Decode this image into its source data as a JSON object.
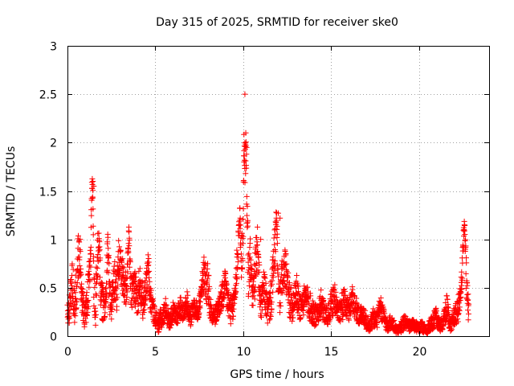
{
  "chart_data": {
    "type": "scatter",
    "title": "Day 315 of 2025, SRMTID for receiver ske0",
    "xlabel": "GPS time / hours",
    "ylabel": "SRMTID / TECUs",
    "xlim": [
      0,
      24
    ],
    "ylim": [
      0,
      3
    ],
    "xticks": [
      0,
      5,
      10,
      15,
      20
    ],
    "xtick_labels": [
      "0",
      "5",
      "10",
      "15",
      "20"
    ],
    "yticks": [
      0,
      0.5,
      1,
      1.5,
      2,
      2.5,
      3
    ],
    "ytick_labels": [
      "0",
      "0.5",
      "1",
      "1.5",
      "2",
      "2.5",
      "3"
    ],
    "grid": true,
    "marker": "+",
    "color": "#ff0000",
    "series": [
      {
        "name": "SRMTID",
        "x": [
          0.0,
          0.1,
          0.2,
          0.3,
          0.4,
          0.5,
          0.6,
          0.7,
          0.8,
          0.9,
          1.0,
          1.1,
          1.2,
          1.3,
          1.4,
          1.45,
          1.5,
          1.6,
          1.7,
          1.8,
          1.9,
          2.0,
          2.1,
          2.2,
          2.3,
          2.4,
          2.5,
          2.6,
          2.7,
          2.8,
          2.9,
          3.0,
          3.1,
          3.2,
          3.3,
          3.4,
          3.5,
          3.6,
          3.7,
          3.8,
          3.9,
          4.0,
          4.1,
          4.2,
          4.3,
          4.4,
          4.5,
          4.6,
          4.7,
          4.8,
          4.9,
          5.0,
          5.1,
          5.2,
          5.3,
          5.4,
          5.5,
          5.6,
          5.7,
          5.8,
          5.9,
          6.0,
          6.2,
          6.4,
          6.6,
          6.8,
          7.0,
          7.2,
          7.4,
          7.6,
          7.8,
          7.9,
          8.0,
          8.1,
          8.2,
          8.4,
          8.6,
          8.8,
          9.0,
          9.2,
          9.4,
          9.5,
          9.6,
          9.7,
          9.8,
          9.9,
          10.0,
          10.05,
          10.1,
          10.15,
          10.2,
          10.3,
          10.4,
          10.5,
          10.6,
          10.7,
          10.8,
          10.9,
          11.0,
          11.2,
          11.4,
          11.6,
          11.8,
          11.9,
          12.0,
          12.1,
          12.2,
          12.4,
          12.6,
          12.8,
          13.0,
          13.2,
          13.4,
          13.6,
          13.8,
          14.0,
          14.2,
          14.4,
          14.6,
          14.8,
          15.0,
          15.2,
          15.4,
          15.6,
          15.8,
          16.0,
          16.2,
          16.4,
          16.6,
          16.8,
          17.0,
          17.2,
          17.4,
          17.6,
          17.8,
          18.0,
          18.2,
          18.4,
          18.6,
          18.8,
          19.0,
          19.2,
          19.4,
          19.6,
          19.8,
          20.0,
          20.2,
          20.4,
          20.6,
          20.8,
          21.0,
          21.2,
          21.4,
          21.6,
          21.8,
          22.0,
          22.2,
          22.4,
          22.5,
          22.6,
          22.7,
          22.8
        ],
        "y": [
          0.3,
          0.25,
          0.45,
          0.6,
          0.35,
          0.5,
          0.8,
          0.9,
          0.4,
          0.3,
          0.2,
          0.35,
          0.5,
          0.7,
          1.6,
          1.45,
          0.5,
          0.3,
          0.8,
          1.05,
          0.4,
          0.35,
          0.3,
          0.5,
          0.9,
          0.4,
          0.35,
          0.5,
          0.6,
          0.45,
          0.8,
          0.7,
          0.65,
          0.55,
          0.5,
          0.6,
          1.05,
          0.5,
          0.4,
          0.55,
          0.45,
          0.35,
          0.6,
          0.5,
          0.3,
          0.45,
          0.55,
          0.7,
          0.4,
          0.35,
          0.25,
          0.2,
          0.15,
          0.1,
          0.2,
          0.15,
          0.25,
          0.3,
          0.2,
          0.15,
          0.2,
          0.25,
          0.2,
          0.3,
          0.25,
          0.35,
          0.2,
          0.3,
          0.25,
          0.4,
          0.7,
          0.5,
          0.6,
          0.3,
          0.25,
          0.2,
          0.3,
          0.4,
          0.5,
          0.3,
          0.25,
          0.4,
          0.6,
          0.9,
          1.25,
          0.8,
          1.0,
          2.05,
          1.75,
          1.9,
          1.6,
          0.6,
          0.8,
          0.5,
          0.45,
          0.7,
          1.0,
          0.6,
          0.3,
          0.5,
          0.25,
          0.4,
          0.9,
          1.25,
          0.5,
          0.35,
          0.6,
          0.7,
          0.4,
          0.3,
          0.5,
          0.3,
          0.35,
          0.4,
          0.3,
          0.25,
          0.2,
          0.35,
          0.25,
          0.2,
          0.3,
          0.4,
          0.25,
          0.3,
          0.35,
          0.25,
          0.4,
          0.3,
          0.2,
          0.25,
          0.15,
          0.1,
          0.2,
          0.15,
          0.3,
          0.2,
          0.1,
          0.15,
          0.1,
          0.05,
          0.1,
          0.15,
          0.1,
          0.12,
          0.1,
          0.08,
          0.1,
          0.05,
          0.1,
          0.15,
          0.2,
          0.1,
          0.15,
          0.3,
          0.1,
          0.2,
          0.25,
          0.4,
          0.9,
          1.15,
          0.6,
          0.3
        ],
        "spread": [
          0.15,
          0.15,
          0.2,
          0.25,
          0.25,
          0.3,
          0.25,
          0.2,
          0.2,
          0.15,
          0.15,
          0.15,
          0.2,
          0.2,
          0.1,
          0.1,
          0.2,
          0.2,
          0.25,
          0.1,
          0.2,
          0.2,
          0.15,
          0.2,
          0.2,
          0.2,
          0.2,
          0.2,
          0.2,
          0.2,
          0.2,
          0.2,
          0.2,
          0.2,
          0.2,
          0.2,
          0.1,
          0.2,
          0.2,
          0.2,
          0.2,
          0.2,
          0.2,
          0.2,
          0.15,
          0.15,
          0.15,
          0.2,
          0.15,
          0.15,
          0.1,
          0.1,
          0.08,
          0.08,
          0.1,
          0.08,
          0.1,
          0.1,
          0.1,
          0.08,
          0.1,
          0.1,
          0.1,
          0.12,
          0.1,
          0.12,
          0.1,
          0.1,
          0.1,
          0.15,
          0.2,
          0.2,
          0.2,
          0.15,
          0.1,
          0.1,
          0.1,
          0.15,
          0.2,
          0.15,
          0.15,
          0.15,
          0.2,
          0.25,
          0.15,
          0.2,
          0.25,
          0.15,
          0.2,
          0.2,
          0.3,
          0.25,
          0.25,
          0.2,
          0.2,
          0.25,
          0.2,
          0.2,
          0.15,
          0.2,
          0.15,
          0.2,
          0.25,
          0.1,
          0.2,
          0.15,
          0.2,
          0.2,
          0.2,
          0.15,
          0.2,
          0.15,
          0.15,
          0.15,
          0.15,
          0.15,
          0.1,
          0.15,
          0.1,
          0.1,
          0.15,
          0.15,
          0.1,
          0.15,
          0.15,
          0.1,
          0.15,
          0.12,
          0.1,
          0.1,
          0.08,
          0.06,
          0.1,
          0.08,
          0.12,
          0.1,
          0.06,
          0.08,
          0.06,
          0.04,
          0.06,
          0.08,
          0.06,
          0.06,
          0.06,
          0.05,
          0.06,
          0.04,
          0.06,
          0.08,
          0.1,
          0.06,
          0.08,
          0.15,
          0.06,
          0.1,
          0.12,
          0.2,
          0.2,
          0.05,
          0.25,
          0.15
        ],
        "outliers_x": [
          10.1,
          10.15,
          10.1,
          10.2,
          10.05,
          1.45,
          1.5,
          22.6,
          12.0,
          12.1,
          11.0
        ],
        "outliers_y": [
          2.5,
          2.1,
          2.0,
          1.95,
          1.8,
          1.6,
          1.55,
          1.15,
          1.27,
          1.22,
          1.0
        ]
      }
    ]
  }
}
